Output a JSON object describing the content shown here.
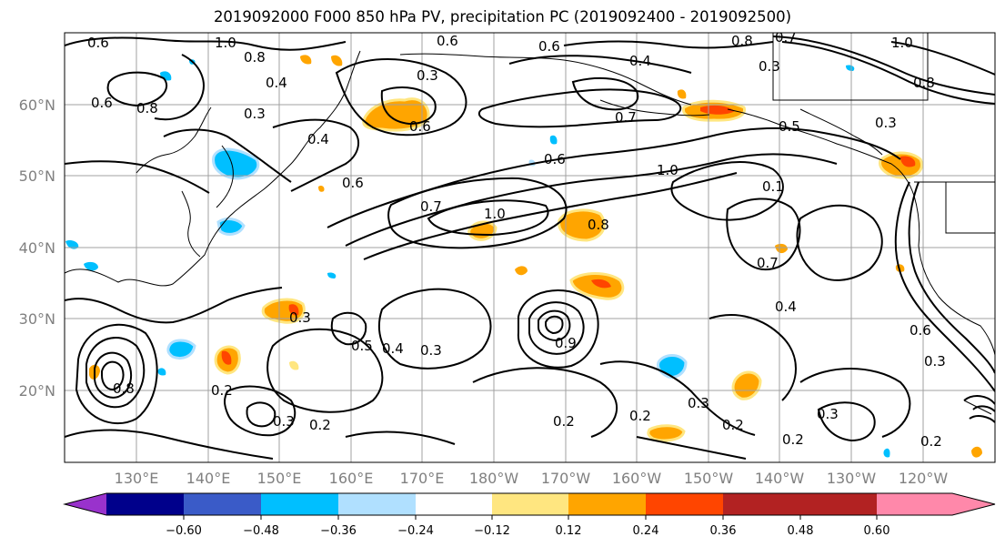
{
  "title": "2019092000 F000 850 hPa PV, precipitation PC (2019092400 - 2019092500)",
  "lat_ticks": [
    "60°N",
    "50°N",
    "40°N",
    "30°N",
    "20°N"
  ],
  "lon_ticks": [
    "130°E",
    "140°E",
    "150°E",
    "160°E",
    "170°E",
    "180°W",
    "170°W",
    "160°W",
    "150°W",
    "140°W",
    "130°W",
    "120°W"
  ],
  "colorbar": {
    "ticks": [
      "−0.60",
      "−0.48",
      "−0.36",
      "−0.24",
      "−0.12",
      "0.12",
      "0.24",
      "0.36",
      "0.48",
      "0.60"
    ],
    "colors": [
      "#9932cc",
      "#00008b",
      "#3a5bc8",
      "#00bfff",
      "#b0e0ff",
      "#ffffff",
      "#ffe680",
      "#ffa500",
      "#ff4500",
      "#b22222",
      "#ff88aa"
    ]
  },
  "contour_labels": [
    "0.6",
    "1.0",
    "0.8",
    "0.6",
    "0.6",
    "0.8",
    "0.7",
    "1.0",
    "0.8",
    "0.3",
    "0.4",
    "0.3",
    "0.8",
    "0.6",
    "0.3",
    "0.4",
    "0.6",
    "0.7",
    "0.5",
    "0.6",
    "1.0",
    "0.3",
    "0.4",
    "0.6",
    "0.7",
    "1.0",
    "0.8",
    "0.1",
    "0.7",
    "0.4",
    "0.6",
    "0.3",
    "0.5",
    "0.4",
    "0.3",
    "0.9",
    "0.2",
    "0.3",
    "0.2",
    "0.2",
    "0.2",
    "0.3",
    "0.2",
    "0.3",
    "0.2",
    "0.8",
    "0.3",
    "0.2"
  ]
}
